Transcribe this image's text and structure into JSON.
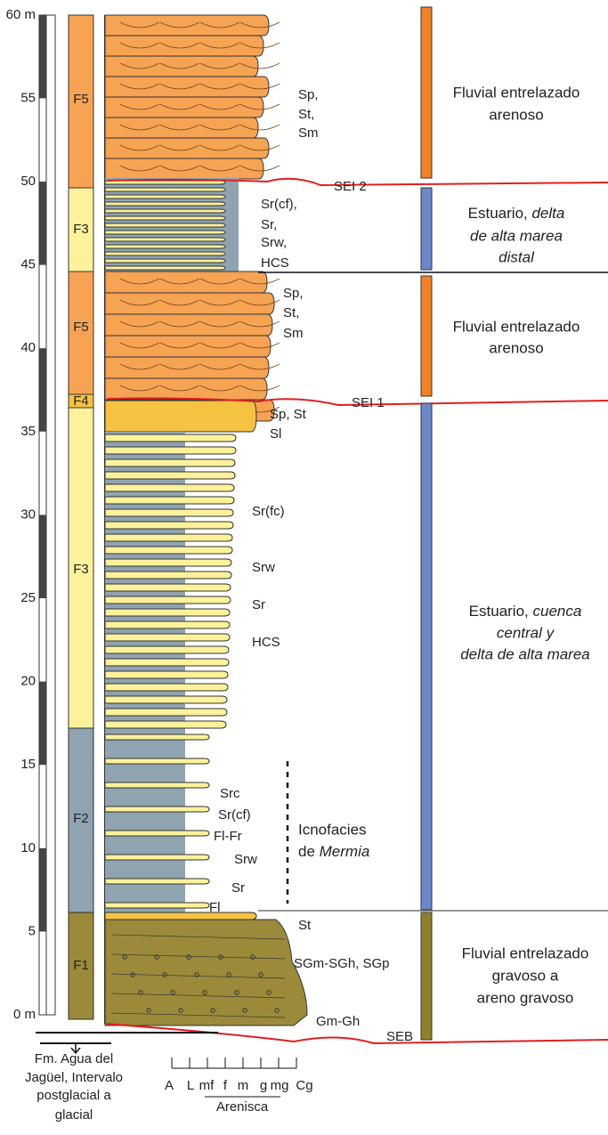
{
  "scale": {
    "labels": [
      "60 m",
      "55",
      "50",
      "45",
      "40",
      "35",
      "30",
      "25",
      "20",
      "15",
      "10",
      "5",
      "0 m"
    ]
  },
  "facies": [
    "F5",
    "F3",
    "F5",
    "F4",
    "F3",
    "F2",
    "F1"
  ],
  "lithofacies": [
    [
      "Sp,",
      "St,",
      "Sm"
    ],
    [
      "Sr(cf),",
      "Sr,",
      "Srw,",
      "HCS"
    ],
    [
      "Sp,",
      "St,",
      "Sm"
    ],
    [
      "Sp, St",
      "Sl"
    ],
    [
      "Sr(fc)",
      "Srw",
      "Sr",
      "HCS"
    ],
    [
      "Src",
      "Sr(cf)",
      "Fl-Fr",
      "Srw",
      "Sr",
      "Fl"
    ],
    [
      "St",
      "SGm-SGh, SGp",
      "Gm-Gh"
    ]
  ],
  "surfaces": [
    "SEI 2",
    "SEI 1",
    "SEB"
  ],
  "ichnofacies": {
    "line1": "Icnofacies",
    "line2_prefix": "de ",
    "line2_italic": "Mermia"
  },
  "environments": [
    {
      "lines": [
        "Fluvial entrelazado",
        "arenoso"
      ]
    },
    {
      "line1": "Estuario, ",
      "line1_italic": "delta",
      "lines_italic": [
        "de alta marea",
        "distal"
      ]
    },
    {
      "lines": [
        "Fluvial entrelazado",
        "arenoso"
      ]
    },
    {
      "line1": "Estuario, ",
      "line1_italic": "cuenca",
      "lines_italic": [
        "central y",
        "delta de alta marea"
      ]
    },
    {
      "lines": [
        "Fluvial entrelazado",
        "gravoso a",
        "areno gravoso"
      ]
    }
  ],
  "formation": [
    "Fm. Agua del",
    "Jagüel, Intervalo",
    "postglacial a",
    "glacial"
  ],
  "grain_scale": {
    "classes": [
      "A",
      "L",
      "mf",
      "f",
      "m",
      "g",
      "mg",
      "Cg"
    ],
    "name": "Arenisca"
  }
}
